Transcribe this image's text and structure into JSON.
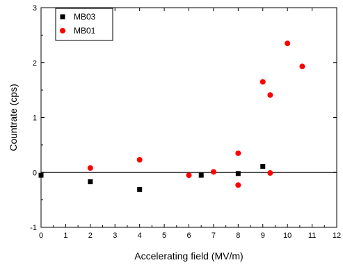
{
  "chart_data": {
    "type": "scatter",
    "xlabel": "Accelerating field (MV/m)",
    "ylabel": "Countrate (cps)",
    "xlim": [
      0,
      12
    ],
    "ylim": [
      -1,
      3
    ],
    "x_ticks": [
      "0",
      "1",
      "2",
      "3",
      "4",
      "5",
      "6",
      "7",
      "8",
      "9",
      "10",
      "11",
      "12"
    ],
    "y_ticks": [
      "-1",
      "0",
      "1",
      "2",
      "3"
    ],
    "zero_line": true,
    "grid": false,
    "legend_position": "top-left",
    "series": [
      {
        "name": "MB03",
        "marker": "square",
        "color": "#000000",
        "points": [
          {
            "x": 0,
            "y": -0.05
          },
          {
            "x": 2,
            "y": -0.17
          },
          {
            "x": 4,
            "y": -0.31
          },
          {
            "x": 6.5,
            "y": -0.05
          },
          {
            "x": 8,
            "y": -0.02
          },
          {
            "x": 9,
            "y": 0.11
          }
        ]
      },
      {
        "name": "MB01",
        "marker": "circle",
        "color": "#ff0000",
        "points": [
          {
            "x": 2,
            "y": 0.08
          },
          {
            "x": 4,
            "y": 0.23
          },
          {
            "x": 6,
            "y": -0.05
          },
          {
            "x": 7,
            "y": 0.01
          },
          {
            "x": 8,
            "y": 0.35
          },
          {
            "x": 8,
            "y": -0.23
          },
          {
            "x": 9,
            "y": 1.65
          },
          {
            "x": 9.3,
            "y": 1.41
          },
          {
            "x": 9.3,
            "y": -0.01
          },
          {
            "x": 10,
            "y": 2.35
          },
          {
            "x": 10.6,
            "y": 1.93
          }
        ]
      }
    ]
  }
}
